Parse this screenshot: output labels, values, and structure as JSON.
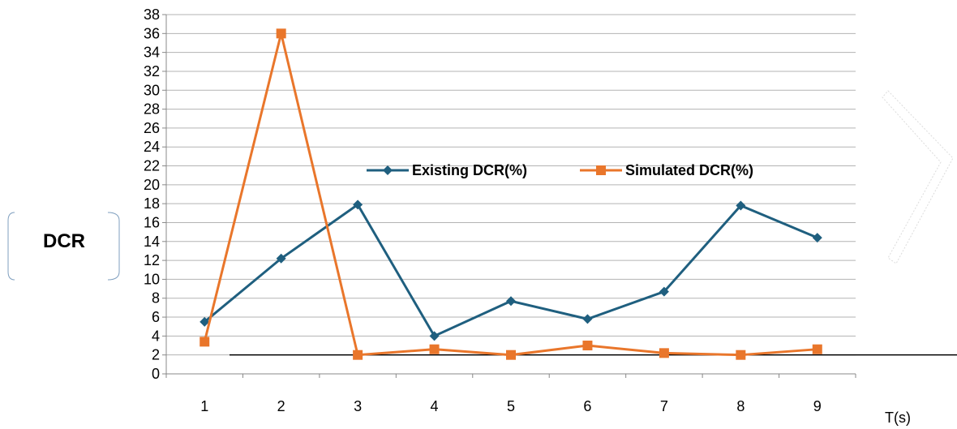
{
  "chart_data": {
    "type": "line",
    "title": "",
    "xlabel": "T(s)",
    "ylabel": "DCR",
    "categories": [
      "1",
      "2",
      "3",
      "4",
      "5",
      "6",
      "7",
      "8",
      "9"
    ],
    "ylim": [
      0,
      38
    ],
    "yticks": [
      0,
      2,
      4,
      6,
      8,
      10,
      12,
      14,
      16,
      18,
      20,
      22,
      24,
      26,
      28,
      30,
      32,
      34,
      36,
      38
    ],
    "grid": true,
    "legend": "center",
    "reference_line_value": 2,
    "series": [
      {
        "name": "Existing DCR(%)",
        "color": "#1f5f7f",
        "marker": "diamond",
        "values": [
          5.5,
          12.2,
          17.9,
          4.0,
          7.7,
          5.8,
          8.7,
          17.8,
          14.4
        ]
      },
      {
        "name": "Simulated DCR(%)",
        "color": "#e9762b",
        "marker": "square",
        "values": [
          3.4,
          36.0,
          2.0,
          2.6,
          2.0,
          3.0,
          2.2,
          2.0,
          2.6
        ]
      }
    ]
  }
}
